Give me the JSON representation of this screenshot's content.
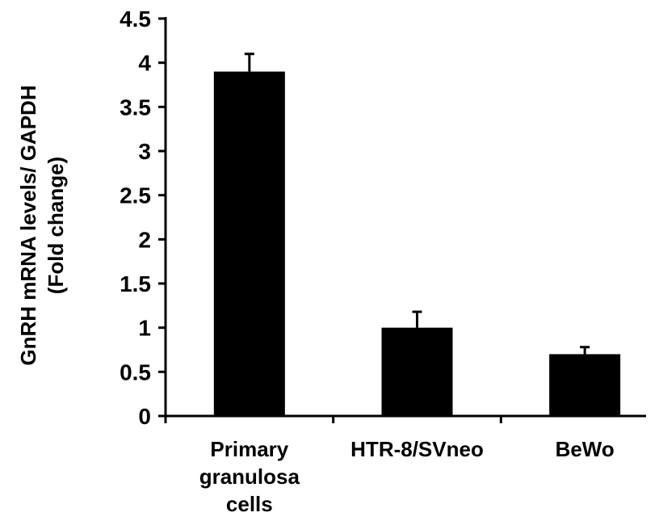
{
  "chart_data": {
    "type": "bar",
    "categories": [
      [
        "Primary",
        "granulosa",
        "cells"
      ],
      [
        "HTR-8/SVneo"
      ],
      [
        "BeWo"
      ]
    ],
    "values": [
      3.9,
      1.0,
      0.7
    ],
    "errors": [
      0.2,
      0.18,
      0.08
    ],
    "ylabel": [
      "GnRH mRNA levels/ GAPDH",
      "(Fold change)"
    ],
    "xlabel": "",
    "title": "",
    "ylim": [
      0,
      4.5
    ],
    "yticks": [
      0,
      0.5,
      1,
      1.5,
      2,
      2.5,
      3,
      3.5,
      4,
      4.5
    ],
    "ytick_labels": [
      "0",
      "0.5",
      "1",
      "1.5",
      "2",
      "2.5",
      "3",
      "3.5",
      "4",
      "4.5"
    ],
    "bar_color": "#000000",
    "grid": false,
    "legend": "none"
  }
}
